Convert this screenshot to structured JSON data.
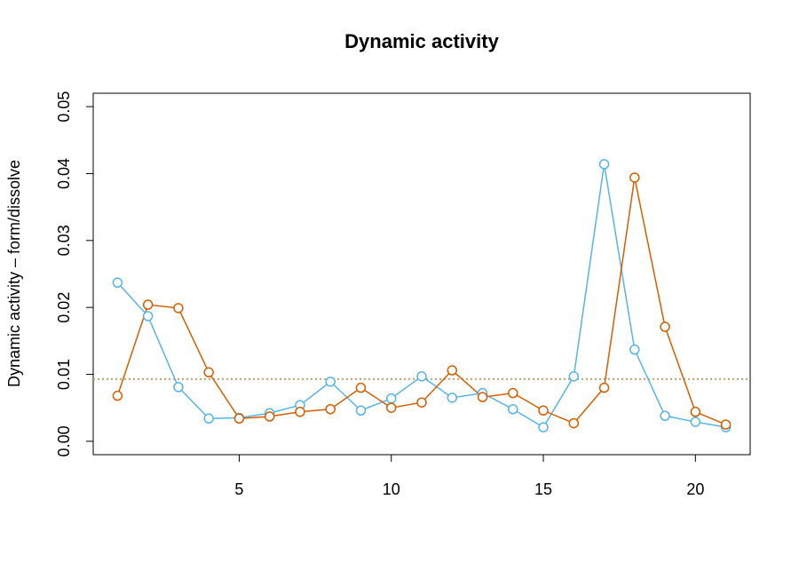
{
  "chart_data": {
    "type": "line",
    "title": "Dynamic activity",
    "ylabel": "Dynamic activity – form/dissolve",
    "x": [
      1,
      2,
      3,
      4,
      5,
      6,
      7,
      8,
      9,
      10,
      11,
      12,
      13,
      14,
      15,
      16,
      17,
      18,
      19,
      20,
      21
    ],
    "series": [
      {
        "color": "#56B4E9",
        "values": [
          0.0237,
          0.0187,
          0.0081,
          0.0034,
          0.0035,
          0.0042,
          0.0054,
          0.0089,
          0.0046,
          0.0064,
          0.0097,
          0.0065,
          0.0072,
          0.0048,
          0.0021,
          0.0097,
          0.0414,
          0.0137,
          0.0038,
          0.0029,
          0.0021
        ]
      },
      {
        "color": "#D55E00",
        "values": [
          0.0068,
          0.0204,
          0.0199,
          0.0103,
          0.0034,
          0.0037,
          0.0044,
          0.0048,
          0.008,
          0.005,
          0.0058,
          0.0106,
          0.0066,
          0.0072,
          0.0046,
          0.0027,
          0.008,
          0.0394,
          0.0171,
          0.0044,
          0.0025
        ]
      }
    ],
    "reference_line": {
      "value": 0.0093,
      "color": "#C8A070"
    },
    "xlim": [
      0.2,
      21.8
    ],
    "xticks": [
      5,
      10,
      15,
      20
    ],
    "ylim": [
      -0.002,
      0.052
    ],
    "yticks": [
      {
        "value": 0,
        "label": "0.00"
      },
      {
        "value": 0.01,
        "label": "0.01"
      },
      {
        "value": 0.02,
        "label": "0.02"
      },
      {
        "value": 0.03,
        "label": "0.03"
      },
      {
        "value": 0.04,
        "label": "0.04"
      },
      {
        "value": 0.05,
        "label": "0.05"
      }
    ]
  }
}
